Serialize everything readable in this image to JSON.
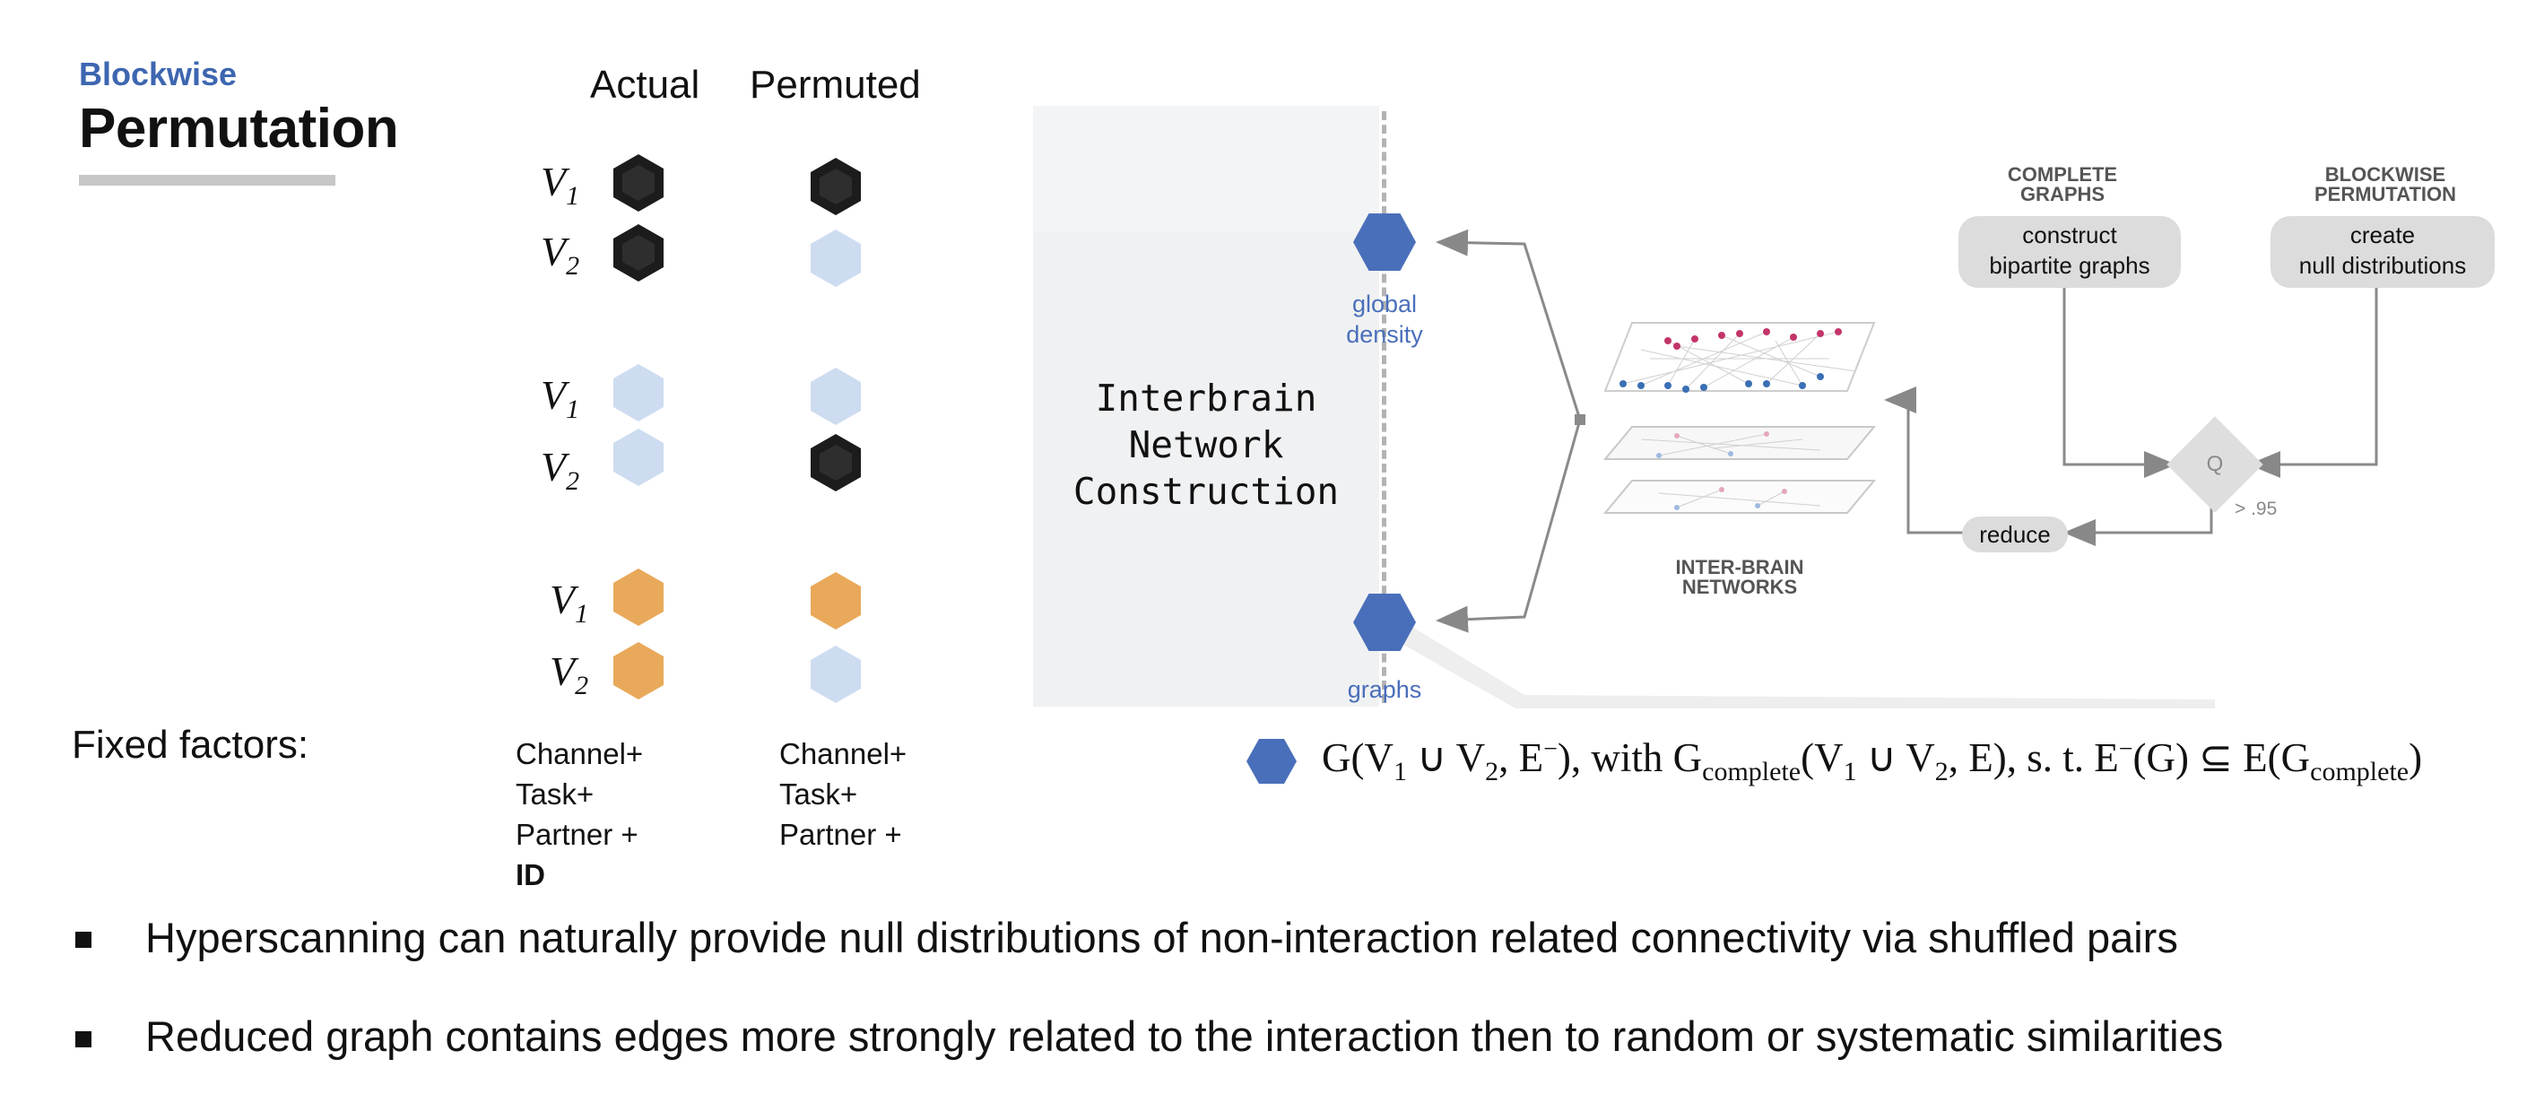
{
  "header": {
    "subtitle": "Blockwise",
    "title": "Permutation"
  },
  "columns": {
    "actual": "Actual",
    "permuted": "Permuted"
  },
  "rows": [
    {
      "label": "V",
      "sub": "1",
      "actual": "black",
      "permuted": "black"
    },
    {
      "label": "V",
      "sub": "2",
      "actual": "black",
      "permuted": "light"
    },
    {
      "label": "V",
      "sub": "1",
      "actual": "light",
      "permuted": "light"
    },
    {
      "label": "V",
      "sub": "2",
      "actual": "light",
      "permuted": "black"
    },
    {
      "label": "V",
      "sub": "1",
      "actual": "orange",
      "permuted": "orange"
    },
    {
      "label": "V",
      "sub": "2",
      "actual": "orange",
      "permuted": "light"
    }
  ],
  "fixed_factors": {
    "label": "Fixed factors:",
    "actual": [
      "Channel+",
      "Task+",
      "Partner +",
      "ID"
    ],
    "permuted": [
      "Channel+",
      "Task+",
      "Partner +"
    ]
  },
  "diagram": {
    "panel_title_lines": [
      "Interbrain",
      "Network",
      "Construction"
    ],
    "global_density": [
      "global",
      "density"
    ],
    "graphs": "graphs",
    "complete_graphs": [
      "COMPLETE",
      "GRAPHS"
    ],
    "blockwise_permutation": [
      "BLOCKWISE",
      "PERMUTATION"
    ],
    "construct_pill": [
      "construct",
      "bipartite graphs"
    ],
    "create_pill": [
      "create",
      "null distributions"
    ],
    "q_label": "Q",
    "threshold": "> .95",
    "reduce": "reduce",
    "inter_brain_networks": [
      "INTER-BRAIN",
      "NETWORKS"
    ]
  },
  "formula": {
    "p1": "G(V",
    "s1": "1",
    "p2": " ∪ V",
    "s2": "2",
    "p3": ", E",
    "sup1": "−",
    "p4": "), with G",
    "s3": "complete",
    "p5": "(V",
    "s4": "1",
    "p6": " ∪ V",
    "s5": "2",
    "p7": ", E), s. t. E",
    "sup2": "−",
    "p8": "(G)  ⊆ E(G",
    "s6": "complete",
    "p9": ")"
  },
  "bullets": [
    "Hyperscanning can naturally provide null distributions of non-interaction related connectivity via shuffled pairs",
    "Reduced graph contains edges more strongly related to the interaction then to random or systematic similarities"
  ],
  "colors": {
    "accent_blue": "#3d66b0",
    "node_blue": "#4a6fba",
    "orange": "#e9a95a",
    "light_blue": "#cddcf0",
    "black": "#1c1c1c"
  }
}
